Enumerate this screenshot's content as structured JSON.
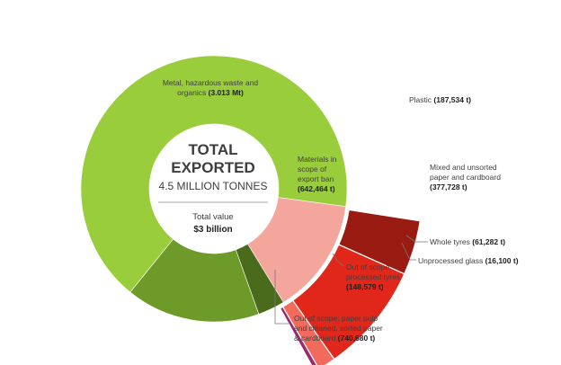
{
  "center": {
    "title_line1": "TOTAL",
    "title_line2": "EXPORTED",
    "subtitle": "4.5 MILLION TONNES",
    "value_label": "Total value",
    "value": "$3 billion"
  },
  "colors": {
    "metal": "#9ACD3C",
    "paper_pulp": "#6E9A2A",
    "tyres_processed": "#4A6A1C",
    "ban": "#F4A69C",
    "plastic": "#991B12",
    "mixed_paper": "#E1271A",
    "whole_tyres": "#F26A5C",
    "glass": "#9B2A6A"
  },
  "chart_data": {
    "type": "pie",
    "title": "TOTAL EXPORTED",
    "subtitle": "4.5 MILLION TONNES",
    "unit": "t",
    "segments": [
      {
        "key": "metal",
        "label": "Metal, hazardous waste and organics",
        "value_text": "(3.013 Mt)",
        "value": 3013000
      },
      {
        "key": "ban",
        "label": "Materials in scope of export ban",
        "value_text": "(642,464 t)",
        "value": 642464
      },
      {
        "key": "tyres_processed",
        "label": "Out of scope: processed tyres",
        "value_text": "(148,579 t)",
        "value": 148579
      },
      {
        "key": "paper_pulp",
        "label": "Out of scope: paper pulp and cleaned, sorted paper & cardboard",
        "value_text": "(740,680 t)",
        "value": 740680
      }
    ],
    "breakdown_of": "ban",
    "breakdown": [
      {
        "key": "plastic",
        "label": "Plastic",
        "value_text": "(187,534 t)",
        "value": 187534
      },
      {
        "key": "mixed_paper",
        "label": "Mixed and unsorted paper and cardboard",
        "value_text": "(377,728 t)",
        "value": 377728
      },
      {
        "key": "whole_tyres",
        "label": "Whole tyres",
        "value_text": "(61,282 t)",
        "value": 61282
      },
      {
        "key": "glass",
        "label": "Unprocessed glass",
        "value_text": "(16,100 t)",
        "value": 16100
      }
    ]
  },
  "labels": {
    "metal": {
      "l1": "Metal, hazardous waste and",
      "l2": "organics",
      "v": "(3.013 Mt)"
    },
    "ban": {
      "l1": "Materials in",
      "l2": "scope of",
      "l3": "export ban",
      "v": "(642,464 t)"
    },
    "plastic": {
      "l1": "Plastic",
      "v": "(187,534 t)"
    },
    "mixed_paper": {
      "l1": "Mixed and unsorted",
      "l2": "paper and cardboard",
      "v": "(377,728 t)"
    },
    "whole_tyres": {
      "l1": "Whole tyres",
      "v": "(61,282 t)"
    },
    "glass": {
      "l1": "Unprocessed glass",
      "v": "(16,100 t)"
    },
    "tyres_processed": {
      "l1": "Out of scope:",
      "l2": "processed tyres",
      "v": "(148,579 t)"
    },
    "paper_pulp": {
      "l1": "Out of scope: paper pulp",
      "l2": "and cleaned, sorted paper",
      "l3": "& cardboard",
      "v": "(740,680 t)"
    }
  }
}
